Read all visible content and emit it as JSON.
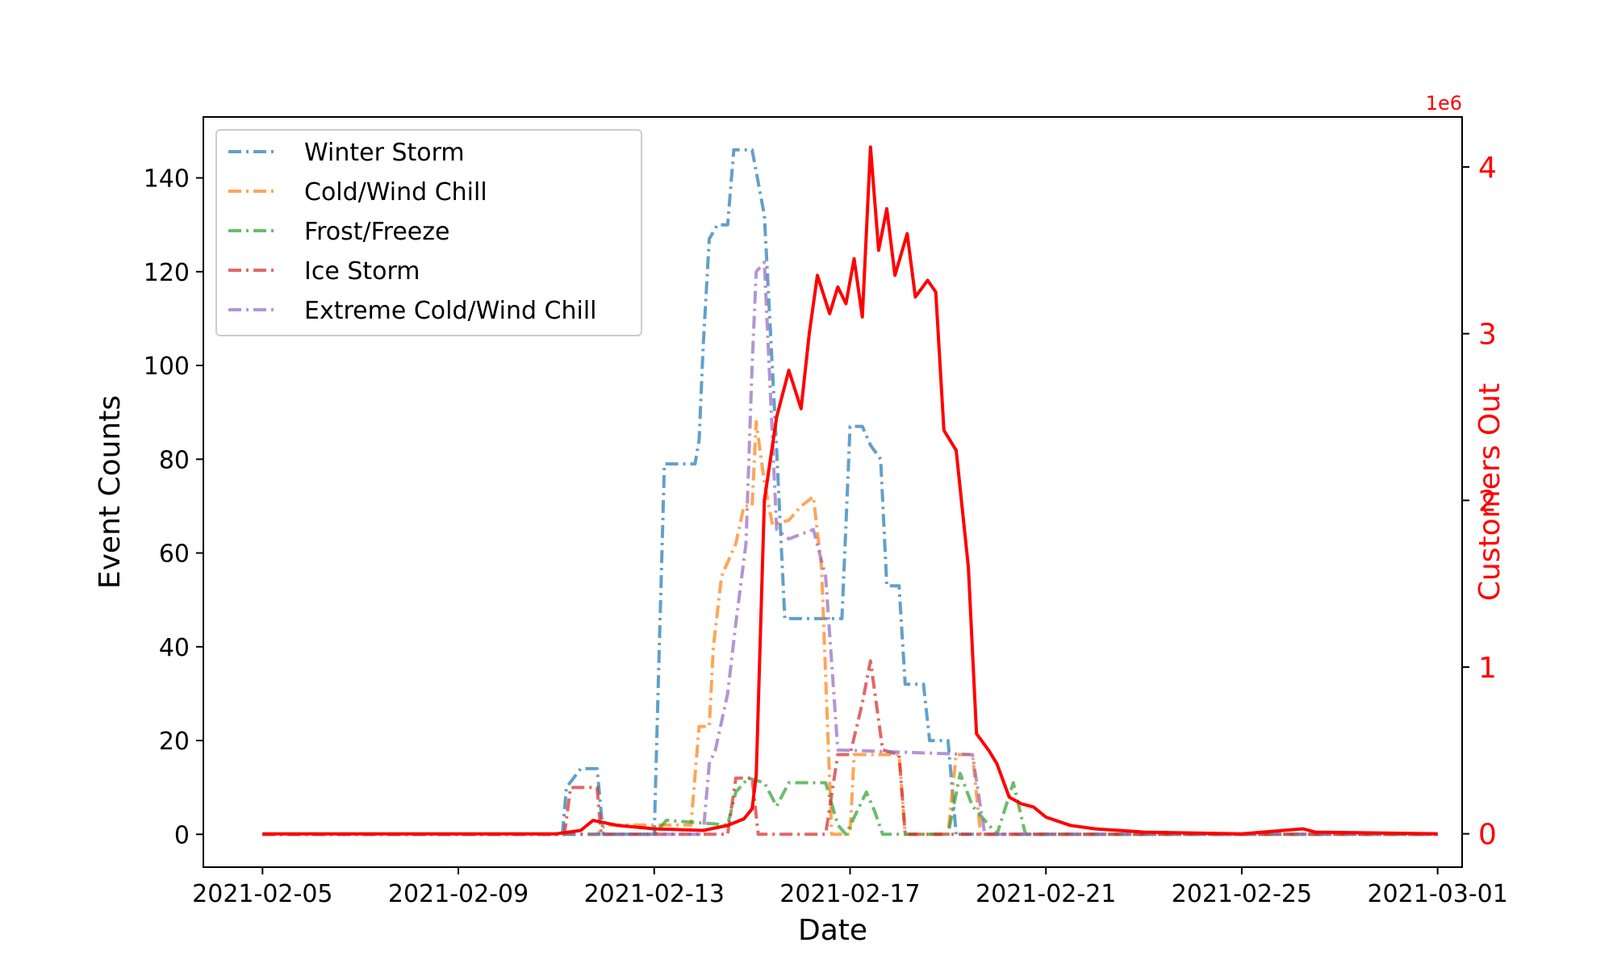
{
  "chart_data": {
    "type": "line",
    "xlabel": "Date",
    "ylabel": "Event Counts",
    "y2label": "Customers Out",
    "y2_offset_label": "1e6",
    "x_ticks": [
      "2021-02-05",
      "2021-02-09",
      "2021-02-13",
      "2021-02-17",
      "2021-02-21",
      "2021-02-25",
      "2021-03-01"
    ],
    "x_range": [
      "2021-02-03T19:00",
      "2021-03-01T12:00"
    ],
    "y_ticks": [
      0,
      20,
      40,
      60,
      80,
      100,
      120,
      140
    ],
    "ylim": [
      -7,
      153
    ],
    "y2_ticks": [
      0,
      1,
      2,
      3,
      4
    ],
    "y2lim": [
      -0.2,
      4.3
    ],
    "y2_units": "millions",
    "grid": false,
    "legend_position": "upper-left",
    "series": [
      {
        "name": "Winter Storm",
        "color": "#1f77b4",
        "style": "dash-dot",
        "axis": "left",
        "points": [
          [
            "2021-02-05T00:00",
            0
          ],
          [
            "2021-02-11T03:00",
            0
          ],
          [
            "2021-02-11T05:00",
            10
          ],
          [
            "2021-02-11T12:00",
            14
          ],
          [
            "2021-02-11T20:00",
            14
          ],
          [
            "2021-02-11T23:00",
            0
          ],
          [
            "2021-02-13T00:00",
            0
          ],
          [
            "2021-02-13T02:00",
            32
          ],
          [
            "2021-02-13T05:00",
            79
          ],
          [
            "2021-02-13T20:00",
            79
          ],
          [
            "2021-02-13T22:00",
            84
          ],
          [
            "2021-02-14T00:00",
            104
          ],
          [
            "2021-02-14T03:00",
            127
          ],
          [
            "2021-02-14T07:00",
            130
          ],
          [
            "2021-02-14T12:00",
            130
          ],
          [
            "2021-02-14T15:00",
            146
          ],
          [
            "2021-02-15T00:00",
            146
          ],
          [
            "2021-02-15T06:00",
            132
          ],
          [
            "2021-02-15T12:00",
            82
          ],
          [
            "2021-02-15T16:00",
            46
          ],
          [
            "2021-02-16T20:00",
            46
          ],
          [
            "2021-02-16T22:00",
            66
          ],
          [
            "2021-02-17T00:00",
            87
          ],
          [
            "2021-02-17T06:00",
            87
          ],
          [
            "2021-02-17T10:00",
            83
          ],
          [
            "2021-02-17T15:00",
            80
          ],
          [
            "2021-02-17T18:00",
            53
          ],
          [
            "2021-02-18T00:00",
            53
          ],
          [
            "2021-02-18T03:00",
            32
          ],
          [
            "2021-02-18T12:00",
            32
          ],
          [
            "2021-02-18T15:00",
            20
          ],
          [
            "2021-02-19T00:00",
            20
          ],
          [
            "2021-02-19T04:00",
            0
          ],
          [
            "2021-03-01T00:00",
            0
          ]
        ]
      },
      {
        "name": "Cold/Wind Chill",
        "color": "#ff7f0e",
        "style": "dash-dot",
        "axis": "left",
        "points": [
          [
            "2021-02-05T00:00",
            0
          ],
          [
            "2021-02-11T20:00",
            0
          ],
          [
            "2021-02-12T00:00",
            2
          ],
          [
            "2021-02-13T18:00",
            2
          ],
          [
            "2021-02-13T22:00",
            23
          ],
          [
            "2021-02-14T03:00",
            23
          ],
          [
            "2021-02-14T05:00",
            40
          ],
          [
            "2021-02-14T09:00",
            55
          ],
          [
            "2021-02-14T16:00",
            62
          ],
          [
            "2021-02-14T20:00",
            70
          ],
          [
            "2021-02-15T00:00",
            70
          ],
          [
            "2021-02-15T02:00",
            88
          ],
          [
            "2021-02-15T06:00",
            75
          ],
          [
            "2021-02-15T10:00",
            66
          ],
          [
            "2021-02-15T18:00",
            67
          ],
          [
            "2021-02-16T00:00",
            70
          ],
          [
            "2021-02-16T06:00",
            72
          ],
          [
            "2021-02-16T10:00",
            57
          ],
          [
            "2021-02-16T15:00",
            0
          ],
          [
            "2021-02-17T00:00",
            0
          ],
          [
            "2021-02-17T02:00",
            17
          ],
          [
            "2021-02-18T00:00",
            17
          ],
          [
            "2021-02-18T03:00",
            0
          ],
          [
            "2021-02-19T00:00",
            0
          ],
          [
            "2021-02-19T04:00",
            17
          ],
          [
            "2021-02-19T12:00",
            17
          ],
          [
            "2021-02-19T16:00",
            0
          ],
          [
            "2021-03-01T00:00",
            0
          ]
        ]
      },
      {
        "name": "Frost/Freeze",
        "color": "#2ca02c",
        "style": "dash-dot",
        "axis": "left",
        "points": [
          [
            "2021-02-05T00:00",
            0
          ],
          [
            "2021-02-13T00:00",
            0
          ],
          [
            "2021-02-13T06:00",
            3
          ],
          [
            "2021-02-14T12:00",
            2
          ],
          [
            "2021-02-14T16:00",
            9
          ],
          [
            "2021-02-14T22:00",
            12
          ],
          [
            "2021-02-15T06:00",
            11
          ],
          [
            "2021-02-15T12:00",
            6
          ],
          [
            "2021-02-15T18:00",
            11
          ],
          [
            "2021-02-16T12:00",
            11
          ],
          [
            "2021-02-16T18:00",
            2
          ],
          [
            "2021-02-16T22:00",
            0
          ],
          [
            "2021-02-17T08:00",
            9
          ],
          [
            "2021-02-17T12:00",
            5
          ],
          [
            "2021-02-17T16:00",
            0
          ],
          [
            "2021-02-18T06:00",
            0
          ],
          [
            "2021-02-19T00:00",
            0
          ],
          [
            "2021-02-19T06:00",
            13
          ],
          [
            "2021-02-19T12:00",
            6
          ],
          [
            "2021-02-20T00:00",
            0
          ],
          [
            "2021-02-20T08:00",
            11
          ],
          [
            "2021-02-20T14:00",
            0
          ],
          [
            "2021-03-01T00:00",
            0
          ]
        ]
      },
      {
        "name": "Ice Storm",
        "color": "#d62728",
        "style": "dash-dot",
        "axis": "left",
        "points": [
          [
            "2021-02-05T00:00",
            0
          ],
          [
            "2021-02-11T04:00",
            0
          ],
          [
            "2021-02-11T07:00",
            10
          ],
          [
            "2021-02-11T20:00",
            10
          ],
          [
            "2021-02-11T22:00",
            0
          ],
          [
            "2021-02-14T12:00",
            0
          ],
          [
            "2021-02-14T16:00",
            12
          ],
          [
            "2021-02-15T00:00",
            12
          ],
          [
            "2021-02-15T03:00",
            0
          ],
          [
            "2021-02-16T12:00",
            0
          ],
          [
            "2021-02-16T18:00",
            17
          ],
          [
            "2021-02-17T00:00",
            17
          ],
          [
            "2021-02-17T06:00",
            28
          ],
          [
            "2021-02-17T10:00",
            37
          ],
          [
            "2021-02-17T16:00",
            18
          ],
          [
            "2021-02-18T00:00",
            17
          ],
          [
            "2021-02-18T03:00",
            0
          ],
          [
            "2021-03-01T00:00",
            0
          ]
        ]
      },
      {
        "name": "Extreme Cold/Wind Chill",
        "color": "#9467bd",
        "style": "dash-dot",
        "axis": "left",
        "points": [
          [
            "2021-02-05T00:00",
            0
          ],
          [
            "2021-02-14T00:00",
            0
          ],
          [
            "2021-02-14T03:00",
            15
          ],
          [
            "2021-02-14T06:00",
            18
          ],
          [
            "2021-02-14T12:00",
            30
          ],
          [
            "2021-02-14T16:00",
            45
          ],
          [
            "2021-02-14T21:00",
            62
          ],
          [
            "2021-02-15T00:00",
            100
          ],
          [
            "2021-02-15T02:00",
            120
          ],
          [
            "2021-02-15T06:00",
            122
          ],
          [
            "2021-02-15T12:00",
            65
          ],
          [
            "2021-02-15T18:00",
            63
          ],
          [
            "2021-02-16T06:00",
            65
          ],
          [
            "2021-02-16T12:00",
            55
          ],
          [
            "2021-02-16T18:00",
            18
          ],
          [
            "2021-02-19T12:00",
            17
          ],
          [
            "2021-02-19T18:00",
            0
          ],
          [
            "2021-03-01T00:00",
            0
          ]
        ]
      },
      {
        "name": "Customers Out",
        "color": "#ff0000",
        "style": "solid",
        "axis": "right",
        "points": [
          [
            "2021-02-05T00:00",
            0.0
          ],
          [
            "2021-02-11T00:00",
            0.0
          ],
          [
            "2021-02-11T12:00",
            0.02
          ],
          [
            "2021-02-11T18:00",
            0.08
          ],
          [
            "2021-02-12T06:00",
            0.05
          ],
          [
            "2021-02-13T00:00",
            0.03
          ],
          [
            "2021-02-14T00:00",
            0.02
          ],
          [
            "2021-02-14T12:00",
            0.05
          ],
          [
            "2021-02-14T20:00",
            0.09
          ],
          [
            "2021-02-15T00:00",
            0.15
          ],
          [
            "2021-02-15T02:00",
            0.35
          ],
          [
            "2021-02-15T06:00",
            2.0
          ],
          [
            "2021-02-15T12:00",
            2.5
          ],
          [
            "2021-02-15T18:00",
            2.78
          ],
          [
            "2021-02-16T00:00",
            2.55
          ],
          [
            "2021-02-16T04:00",
            3.0
          ],
          [
            "2021-02-16T08:00",
            3.35
          ],
          [
            "2021-02-16T14:00",
            3.12
          ],
          [
            "2021-02-16T18:00",
            3.28
          ],
          [
            "2021-02-16T22:00",
            3.18
          ],
          [
            "2021-02-17T02:00",
            3.45
          ],
          [
            "2021-02-17T06:00",
            3.1
          ],
          [
            "2021-02-17T10:00",
            4.12
          ],
          [
            "2021-02-17T14:00",
            3.5
          ],
          [
            "2021-02-17T18:00",
            3.75
          ],
          [
            "2021-02-17T22:00",
            3.35
          ],
          [
            "2021-02-18T04:00",
            3.6
          ],
          [
            "2021-02-18T08:00",
            3.22
          ],
          [
            "2021-02-18T14:00",
            3.32
          ],
          [
            "2021-02-18T18:00",
            3.25
          ],
          [
            "2021-02-18T22:00",
            2.42
          ],
          [
            "2021-02-19T04:00",
            2.3
          ],
          [
            "2021-02-19T10:00",
            1.6
          ],
          [
            "2021-02-19T14:00",
            0.6
          ],
          [
            "2021-02-19T20:00",
            0.5
          ],
          [
            "2021-02-20T00:00",
            0.42
          ],
          [
            "2021-02-20T06:00",
            0.22
          ],
          [
            "2021-02-20T12:00",
            0.18
          ],
          [
            "2021-02-20T18:00",
            0.16
          ],
          [
            "2021-02-21T00:00",
            0.1
          ],
          [
            "2021-02-21T12:00",
            0.05
          ],
          [
            "2021-02-22T00:00",
            0.03
          ],
          [
            "2021-02-22T12:00",
            0.02
          ],
          [
            "2021-02-23T00:00",
            0.01
          ],
          [
            "2021-02-25T00:00",
            0.0
          ],
          [
            "2021-02-26T06:00",
            0.03
          ],
          [
            "2021-02-26T12:00",
            0.01
          ],
          [
            "2021-03-01T00:00",
            0.0
          ]
        ]
      }
    ]
  }
}
